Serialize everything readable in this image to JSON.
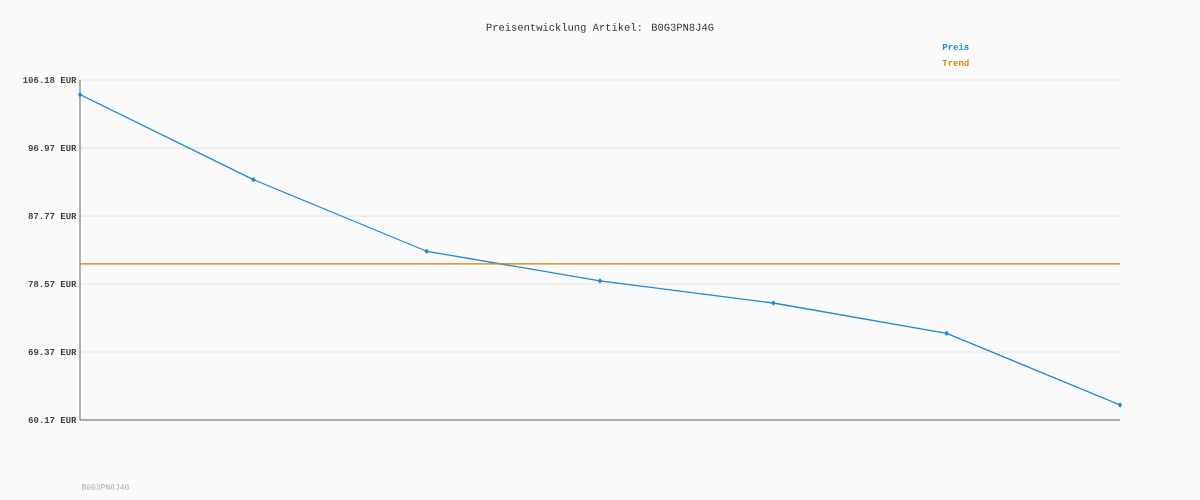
{
  "chart_data": {
    "type": "line",
    "title": "Preisentwicklung Artikel: B0G3PN8J4G",
    "categories": [
      null,
      null,
      null,
      null,
      null,
      null,
      null
    ],
    "series": [
      {
        "name": "Preis",
        "color": "#1f88d2",
        "values": [
          104.2,
          92.7,
          83.0,
          79.0,
          76.0,
          71.9,
          62.2
        ],
        "marker": "diamond"
      },
      {
        "name": "Trend",
        "color": "#d97c00",
        "values": [
          81.3,
          81.3,
          81.3,
          81.3,
          81.3,
          81.3,
          81.3
        ],
        "marker": "none"
      }
    ],
    "ylim": [
      60.17,
      106.18
    ],
    "yticks": [
      {
        "value": 60.17,
        "label": "60.17 EUR"
      },
      {
        "value": 69.37,
        "label": "69.37 EUR"
      },
      {
        "value": 78.57,
        "label": "78.57 EUR"
      },
      {
        "value": 87.77,
        "label": "87.77 EUR"
      },
      {
        "value": 96.97,
        "label": "96.97 EUR"
      },
      {
        "value": 106.18,
        "label": "106.18 EUR"
      }
    ],
    "grid": "y",
    "legend": "top right",
    "tick_labels": "y",
    "annotations": [
      "B0G3PN8J4G"
    ]
  }
}
